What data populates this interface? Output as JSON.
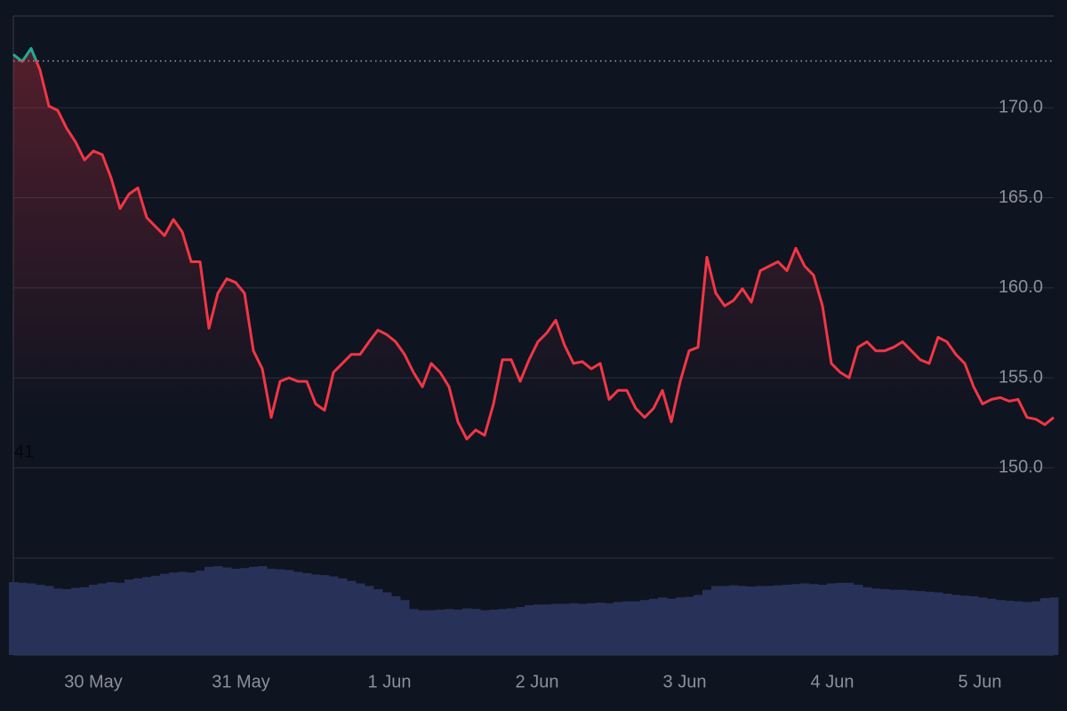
{
  "chart_data": {
    "type": "line",
    "color": "#f23645",
    "up_color": "#22ab94",
    "baseline": 172.6,
    "left_label": "41",
    "xlim": [
      0,
      117
    ],
    "xticks": [
      {
        "value": 9,
        "label": "30 May"
      },
      {
        "value": 25.6,
        "label": "31 May"
      },
      {
        "value": 42.3,
        "label": "1 Jun"
      },
      {
        "value": 58.9,
        "label": "2 Jun"
      },
      {
        "value": 75.5,
        "label": "3 Jun"
      },
      {
        "value": 92.1,
        "label": "4 Jun"
      },
      {
        "value": 108.7,
        "label": "5 Jun"
      }
    ],
    "ylim": [
      139.6,
      175.1
    ],
    "yticks": [
      {
        "value": 150,
        "label": "150.0"
      },
      {
        "value": 155,
        "label": "155.0"
      },
      {
        "value": 160,
        "label": "160.0"
      },
      {
        "value": 165,
        "label": "165.0"
      },
      {
        "value": 170,
        "label": "170.0"
      }
    ],
    "grid": true,
    "values": [
      172.96,
      172.57,
      173.3,
      172.1,
      170.1,
      169.85,
      168.86,
      168.1,
      167.1,
      167.6,
      167.4,
      166.1,
      164.4,
      165.2,
      165.55,
      163.9,
      163.4,
      162.9,
      163.8,
      163.1,
      161.45,
      161.45,
      157.75,
      159.7,
      160.5,
      160.3,
      159.7,
      156.5,
      155.5,
      152.8,
      154.8,
      155.0,
      154.8,
      154.8,
      153.55,
      153.2,
      155.3,
      155.8,
      156.3,
      156.3,
      157.0,
      157.65,
      157.4,
      157.0,
      156.3,
      155.3,
      154.5,
      155.8,
      155.3,
      154.5,
      152.55,
      151.6,
      152.1,
      151.8,
      153.55,
      156.0,
      156.0,
      154.8,
      156.0,
      157.0,
      157.5,
      158.2,
      156.8,
      155.8,
      155.9,
      155.5,
      155.8,
      153.8,
      154.3,
      154.3,
      153.3,
      152.8,
      153.3,
      154.3,
      152.55,
      154.8,
      156.5,
      156.7,
      161.7,
      159.7,
      159.0,
      159.3,
      159.95,
      159.2,
      160.95,
      161.2,
      161.45,
      160.95,
      162.2,
      161.2,
      160.7,
      159.0,
      155.8,
      155.3,
      155.0,
      156.7,
      157.0,
      156.5,
      156.5,
      156.7,
      157.0,
      156.5,
      156.0,
      155.8,
      157.25,
      157.0,
      156.3,
      155.8,
      154.5,
      153.55,
      153.8,
      153.9,
      153.7,
      153.8,
      152.8,
      152.7,
      152.4,
      152.8
    ],
    "volume": {
      "color": "#283258",
      "y2lim": [
        0,
        100
      ],
      "values": [
        11.4,
        11.3,
        11.2,
        11.0,
        10.8,
        10.4,
        10.3,
        10.5,
        10.6,
        11.0,
        11.2,
        11.4,
        11.3,
        11.8,
        12.0,
        12.2,
        12.4,
        12.7,
        12.9,
        13.0,
        12.9,
        13.2,
        13.8,
        13.9,
        13.7,
        13.5,
        13.6,
        13.8,
        13.9,
        13.5,
        13.4,
        13.3,
        13.0,
        12.8,
        12.6,
        12.5,
        12.3,
        12.0,
        11.6,
        11.2,
        10.8,
        10.3,
        9.8,
        9.2,
        8.6,
        7.2,
        7.0,
        7.0,
        7.1,
        7.2,
        7.1,
        7.3,
        7.2,
        7.0,
        7.1,
        7.2,
        7.3,
        7.5,
        7.8,
        7.9,
        7.9,
        8.0,
        8.0,
        8.1,
        8.0,
        8.1,
        8.2,
        8.1,
        8.3,
        8.4,
        8.4,
        8.6,
        8.8,
        9.0,
        8.8,
        9.0,
        9.1,
        9.4,
        10.2,
        10.8,
        10.8,
        10.9,
        10.8,
        10.7,
        10.8,
        10.8,
        10.9,
        11.0,
        11.1,
        11.2,
        11.1,
        11.0,
        11.2,
        11.3,
        11.3,
        11.0,
        10.6,
        10.4,
        10.3,
        10.2,
        10.2,
        10.1,
        10.0,
        9.9,
        9.8,
        9.6,
        9.4,
        9.3,
        9.2,
        9.0,
        8.8,
        8.6,
        8.5,
        8.4,
        8.3,
        8.4,
        8.9,
        9.0
      ]
    }
  }
}
